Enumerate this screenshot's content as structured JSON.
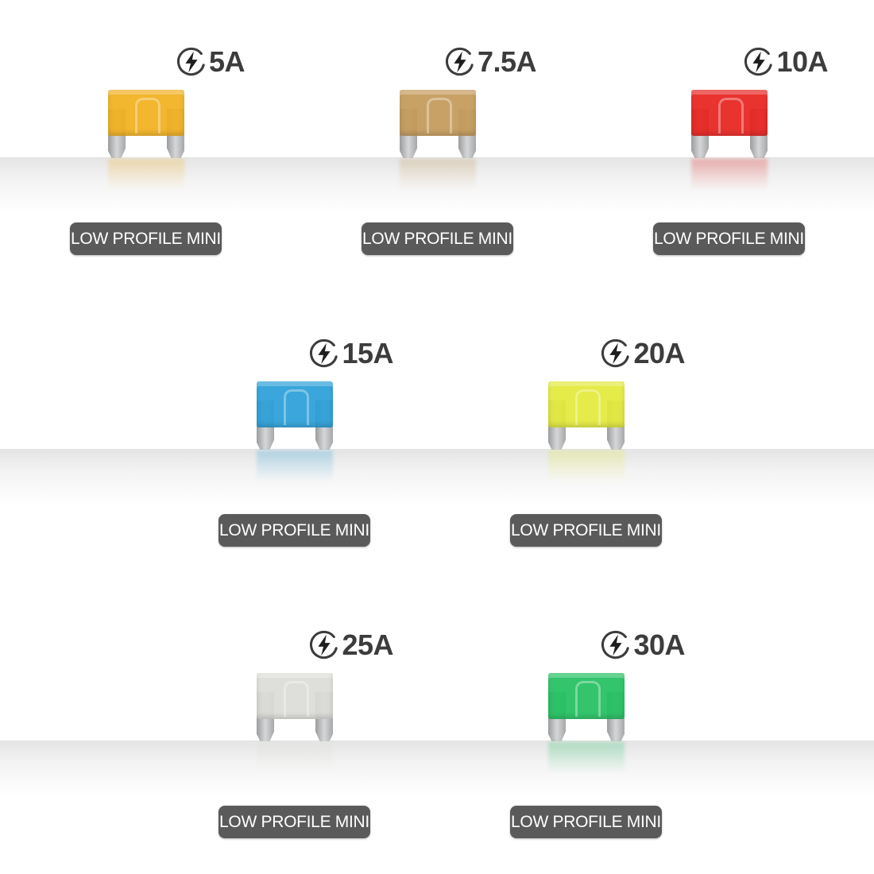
{
  "fuses": [
    {
      "rating": "5A",
      "label": "LOW PROFILE MINI",
      "color": "#f2b01e"
    },
    {
      "rating": "7.5A",
      "label": "LOW PROFILE MINI",
      "color": "#c49a5a"
    },
    {
      "rating": "10A",
      "label": "LOW PROFILE MINI",
      "color": "#e8221e"
    },
    {
      "rating": "15A",
      "label": "LOW PROFILE MINI",
      "color": "#2a9fd8"
    },
    {
      "rating": "20A",
      "label": "LOW PROFILE MINI",
      "color": "#e3ea3a"
    },
    {
      "rating": "25A",
      "label": "LOW PROFILE MINI",
      "color": "#dcdcd8"
    },
    {
      "rating": "30A",
      "label": "LOW PROFILE MINI",
      "color": "#22c060"
    }
  ],
  "icons": {
    "rating": "lightning-bolt-circle-icon"
  }
}
